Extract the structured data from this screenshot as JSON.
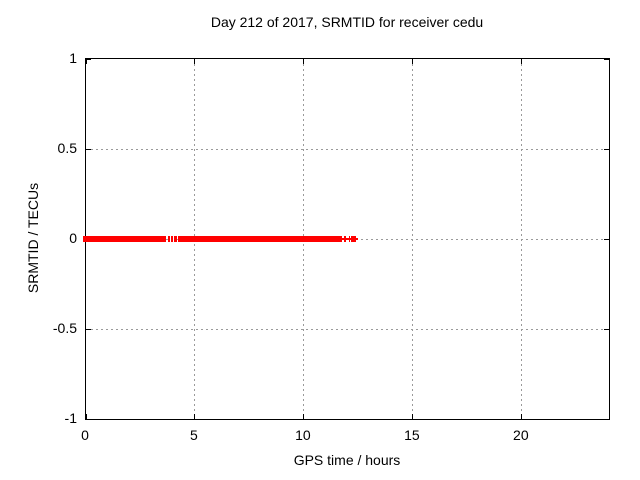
{
  "chart_data": {
    "type": "scatter",
    "title": "Day 212 of 2017, SRMTID for receiver cedu",
    "xlabel": "GPS time / hours",
    "ylabel": "SRMTID / TECUs",
    "xlim": [
      0,
      24
    ],
    "ylim": [
      -1,
      1
    ],
    "xticks": {
      "values": [
        0,
        5,
        10,
        15,
        20
      ],
      "labels": [
        "0",
        "5",
        "10",
        "15",
        "20"
      ]
    },
    "yticks": {
      "values": [
        1,
        0.5,
        0,
        -0.5,
        -1
      ],
      "labels": [
        "1",
        "0.5",
        "0",
        "-0.5",
        "-1"
      ]
    },
    "grid": {
      "show": true,
      "style": "dotted",
      "color": "#9a9a9a",
      "x_at": [
        5,
        10,
        15,
        20
      ],
      "y_at": [
        0.5,
        0,
        -0.5
      ]
    },
    "legend": "none",
    "series": [
      {
        "name": "SRMTID",
        "color": "#ff0000",
        "marker": "plus",
        "y_value": 0,
        "x_coverage_intervals": [
          [
            0.0,
            3.69
          ],
          [
            3.76,
            3.87
          ],
          [
            3.92,
            4.01
          ],
          [
            4.05,
            4.19
          ],
          [
            4.24,
            11.73
          ],
          [
            11.82,
            11.91
          ],
          [
            12.05,
            12.11
          ],
          [
            12.16,
            12.23
          ],
          [
            12.25,
            12.41
          ]
        ],
        "sparse_tail_interval": [
          11.73,
          12.46
        ]
      }
    ]
  }
}
